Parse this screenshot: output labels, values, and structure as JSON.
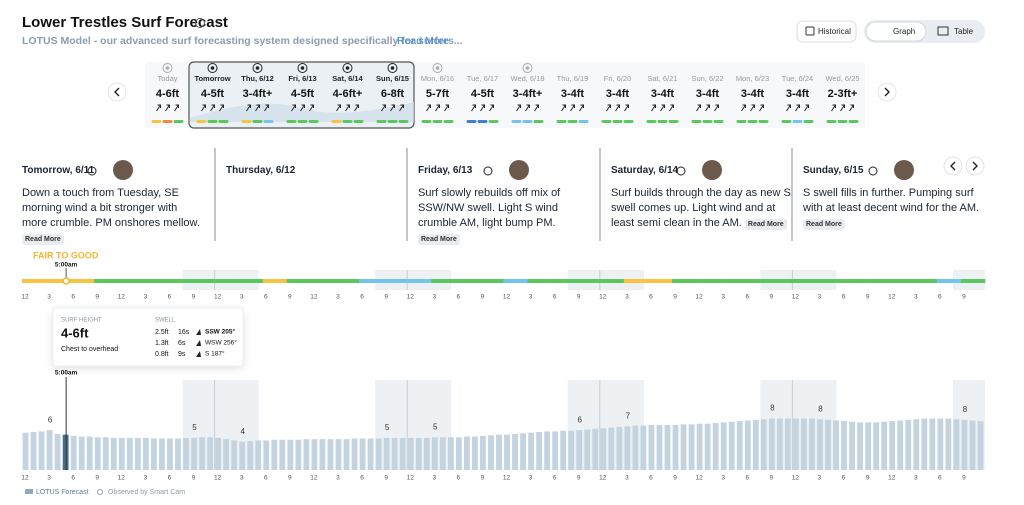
{
  "header": {
    "title": "Lower Trestles Surf Forecast",
    "subtitle": "LOTUS Model - our advanced surf forecasting system designed specifically for surfers...",
    "read_more": "Read More"
  },
  "toolbar": {
    "historical": "Historical",
    "graph": "Graph",
    "table": "Table"
  },
  "days": [
    {
      "label": "Today",
      "height": "4-6ft",
      "colors": [
        "#f6c343",
        "#f08a3c",
        "#5cc75f"
      ]
    },
    {
      "label": "Tomorrow",
      "height": "4-5ft",
      "colors": [
        "#f6c343",
        "#5cc75f",
        "#5cc75f"
      ]
    },
    {
      "label": "Thu, 6/12",
      "height": "3-4ft+",
      "colors": [
        "#f6c343",
        "#5cc75f",
        "#74c3e8"
      ]
    },
    {
      "label": "Fri, 6/13",
      "height": "4-5ft",
      "colors": [
        "#5cc75f",
        "#5cc75f",
        "#5cc75f"
      ]
    },
    {
      "label": "Sat, 6/14",
      "height": "4-6ft+",
      "colors": [
        "#f6c343",
        "#5cc75f",
        "#5cc75f"
      ]
    },
    {
      "label": "Sun, 6/15",
      "height": "6-8ft",
      "colors": [
        "#5cc75f",
        "#5cc75f",
        "#5cc75f"
      ]
    },
    {
      "label": "Mon, 6/16",
      "height": "5-7ft",
      "colors": [
        "#5cc75f",
        "#5cc75f",
        "#5cc75f"
      ]
    },
    {
      "label": "Tue, 6/17",
      "height": "4-5ft",
      "colors": [
        "#3e7fd6",
        "#3e7fd6",
        "#5cc75f"
      ]
    },
    {
      "label": "Wed, 6/18",
      "height": "3-4ft+",
      "colors": [
        "#74c3e8",
        "#74c3e8",
        "#5cc75f"
      ]
    },
    {
      "label": "Thu, 6/19",
      "height": "3-4ft",
      "colors": [
        "#5cc75f",
        "#5cc75f",
        "#74c3e8"
      ]
    },
    {
      "label": "Fri, 6/20",
      "height": "3-4ft",
      "colors": [
        "#5cc75f",
        "#5cc75f",
        "#5cc75f"
      ]
    },
    {
      "label": "Sat, 6/21",
      "height": "3-4ft",
      "colors": [
        "#5cc75f",
        "#5cc75f",
        "#5cc75f"
      ]
    },
    {
      "label": "Sun, 6/22",
      "height": "3-4ft",
      "colors": [
        "#5cc75f",
        "#5cc75f",
        "#5cc75f"
      ]
    },
    {
      "label": "Mon, 6/23",
      "height": "3-4ft",
      "colors": [
        "#5cc75f",
        "#5cc75f",
        "#5cc75f"
      ]
    },
    {
      "label": "Tue, 6/24",
      "height": "3-4ft",
      "colors": [
        "#5cc75f",
        "#74c3e8",
        "#5cc75f"
      ]
    },
    {
      "label": "Wed, 6/25",
      "height": "2-3ft+",
      "colors": [
        "#5cc75f",
        "#5cc75f",
        "#5cc75f"
      ]
    }
  ],
  "reports": [
    {
      "title": "Tomorrow, 6/11",
      "text": "Down a touch from Tuesday, SE morning wind a bit stronger with more crumble. PM onshores mellow.",
      "read_more": "Read More"
    },
    {
      "title": "Thursday, 6/12"
    },
    {
      "title": "Friday, 6/13",
      "text": "Surf slowly rebuilds off mix of SSW/NW swell. Light S wind crumble AM, light bump PM.",
      "read_more": "Read More"
    },
    {
      "title": "Saturday, 6/14",
      "text": "Surf builds through the day as new S swell comes up. Light wind and at least semi clean in the AM.",
      "read_more": "Read More"
    },
    {
      "title": "Sunday, 6/15",
      "text": "S swell fills in further. Pumping surf with at least decent wind for the AM.",
      "read_more": "Read More"
    }
  ],
  "rating": {
    "label": "FAIR TO GOOD",
    "time": "5:00am",
    "colors": [
      "#f6c343",
      "#f6c343",
      "#f6c343",
      "#5cc75f",
      "#5cc75f",
      "#5cc75f",
      "#5cc75f",
      "#5cc75f",
      "#5cc75f",
      "#5cc75f",
      "#f6c343",
      "#5cc75f",
      "#5cc75f",
      "#5cc75f",
      "#74c3e8",
      "#74c3e8",
      "#74c3e8",
      "#5cc75f",
      "#5cc75f",
      "#5cc75f",
      "#74c3e8",
      "#5cc75f",
      "#5cc75f",
      "#5cc75f",
      "#5cc75f",
      "#f6c343",
      "#f6c343",
      "#5cc75f",
      "#5cc75f",
      "#5cc75f",
      "#5cc75f",
      "#5cc75f",
      "#5cc75f",
      "#5cc75f",
      "#5cc75f",
      "#5cc75f",
      "#5cc75f",
      "#5cc75f",
      "#74c3e8",
      "#5cc75f"
    ]
  },
  "time_labels": [
    "12",
    "3",
    "6",
    "9",
    "12",
    "3",
    "6",
    "9",
    "12",
    "3",
    "6",
    "9",
    "12",
    "3",
    "6",
    "9",
    "12",
    "3",
    "6",
    "9",
    "12",
    "3",
    "6",
    "9",
    "12",
    "3",
    "6",
    "9",
    "12",
    "3",
    "6",
    "9",
    "12",
    "3",
    "6",
    "9",
    "12",
    "3",
    "6",
    "9"
  ],
  "tooltip": {
    "title": "SURF HEIGHT",
    "height": "4-6ft",
    "description": "Chest to overhead",
    "swell_title": "SWELL",
    "swells": [
      {
        "height": "2.5ft",
        "period": "16s",
        "direction": "SSW 205°"
      },
      {
        "height": "1.3ft",
        "period": "6s",
        "direction": "WSW 256°"
      },
      {
        "height": "0.8ft",
        "period": "9s",
        "direction": "S 187°"
      }
    ]
  },
  "chart_data": {
    "type": "bar",
    "ylim": [
      0,
      14
    ],
    "color": "#c3d3df",
    "highlight_color": "#4a6d8c",
    "selected": 5,
    "cursor_label": "5:00am",
    "values": [
      5.8,
      5.9,
      6.0,
      6.2,
      5.6,
      5.5,
      5.3,
      5.2,
      5.2,
      5.1,
      5.1,
      5.0,
      5.0,
      5.0,
      5.0,
      5.0,
      4.9,
      4.9,
      4.9,
      4.9,
      5.0,
      5.0,
      5.1,
      5.1,
      5.0,
      4.8,
      4.6,
      4.4,
      4.5,
      4.6,
      4.6,
      4.7,
      4.7,
      4.7,
      4.7,
      4.8,
      4.8,
      4.8,
      4.8,
      4.8,
      4.8,
      4.9,
      4.9,
      4.9,
      4.9,
      5.0,
      5.0,
      5.0,
      5.0,
      5.0,
      5.0,
      5.1,
      5.1,
      5.1,
      5.1,
      5.2,
      5.2,
      5.3,
      5.4,
      5.5,
      5.5,
      5.6,
      5.7,
      5.8,
      5.9,
      6.0,
      6.0,
      6.1,
      6.1,
      6.2,
      6.3,
      6.4,
      6.5,
      6.6,
      6.7,
      6.8,
      6.9,
      6.9,
      7.0,
      7.0,
      7.0,
      7.0,
      7.1,
      7.1,
      7.2,
      7.2,
      7.3,
      7.4,
      7.5,
      7.6,
      7.7,
      7.8,
      7.9,
      8.0,
      8.0,
      8.0,
      8.0,
      8.0,
      8.0,
      7.9,
      7.8,
      7.7,
      7.6,
      7.5,
      7.4,
      7.4,
      7.4,
      7.5,
      7.6,
      7.7,
      7.8,
      7.9,
      8.0,
      8.0,
      8.0,
      8.0,
      7.9,
      7.8,
      7.7,
      7.6
    ],
    "value_labels": [
      null,
      null,
      null,
      "6",
      null,
      null,
      null,
      null,
      null,
      null,
      null,
      null,
      null,
      null,
      null,
      null,
      null,
      null,
      null,
      null,
      null,
      "5",
      null,
      null,
      null,
      null,
      null,
      "4",
      null,
      null,
      null,
      null,
      null,
      null,
      null,
      null,
      null,
      null,
      null,
      null,
      null,
      null,
      null,
      null,
      null,
      "5",
      null,
      null,
      null,
      null,
      null,
      "5",
      null,
      null,
      null,
      null,
      null,
      null,
      null,
      null,
      null,
      null,
      null,
      null,
      null,
      null,
      null,
      null,
      null,
      "6",
      null,
      null,
      null,
      null,
      null,
      "7",
      null,
      null,
      null,
      null,
      null,
      null,
      null,
      null,
      null,
      null,
      null,
      null,
      null,
      null,
      null,
      null,
      null,
      "8",
      null,
      null,
      null,
      null,
      null,
      "8",
      null,
      null,
      null,
      null,
      null,
      null,
      null,
      null,
      null,
      null,
      null,
      null,
      null,
      null,
      null,
      null,
      null,
      "8",
      null,
      null
    ]
  },
  "legend": {
    "forecast": "LOTUS Forecast",
    "observed": "Observed by Smart Cam"
  }
}
